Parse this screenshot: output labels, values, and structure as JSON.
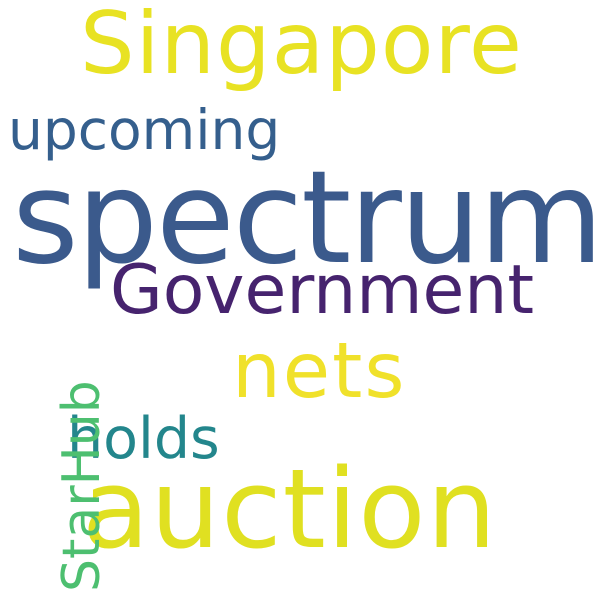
{
  "words": [
    {
      "key": "singapore",
      "text": "Singapore",
      "color": "#e8e223"
    },
    {
      "key": "upcoming",
      "text": "upcoming",
      "color": "#355f8d"
    },
    {
      "key": "spectrum",
      "text": "spectrum",
      "color": "#3b5a8c"
    },
    {
      "key": "government",
      "text": "Government",
      "color": "#46236e"
    },
    {
      "key": "nets",
      "text": "nets",
      "color": "#f0e12a"
    },
    {
      "key": "holds",
      "text": "holds",
      "color": "#23868c"
    },
    {
      "key": "auction",
      "text": "auction",
      "color": "#e0e021"
    },
    {
      "key": "starhub",
      "text": "StarHub",
      "color": "#4dbf70"
    }
  ]
}
